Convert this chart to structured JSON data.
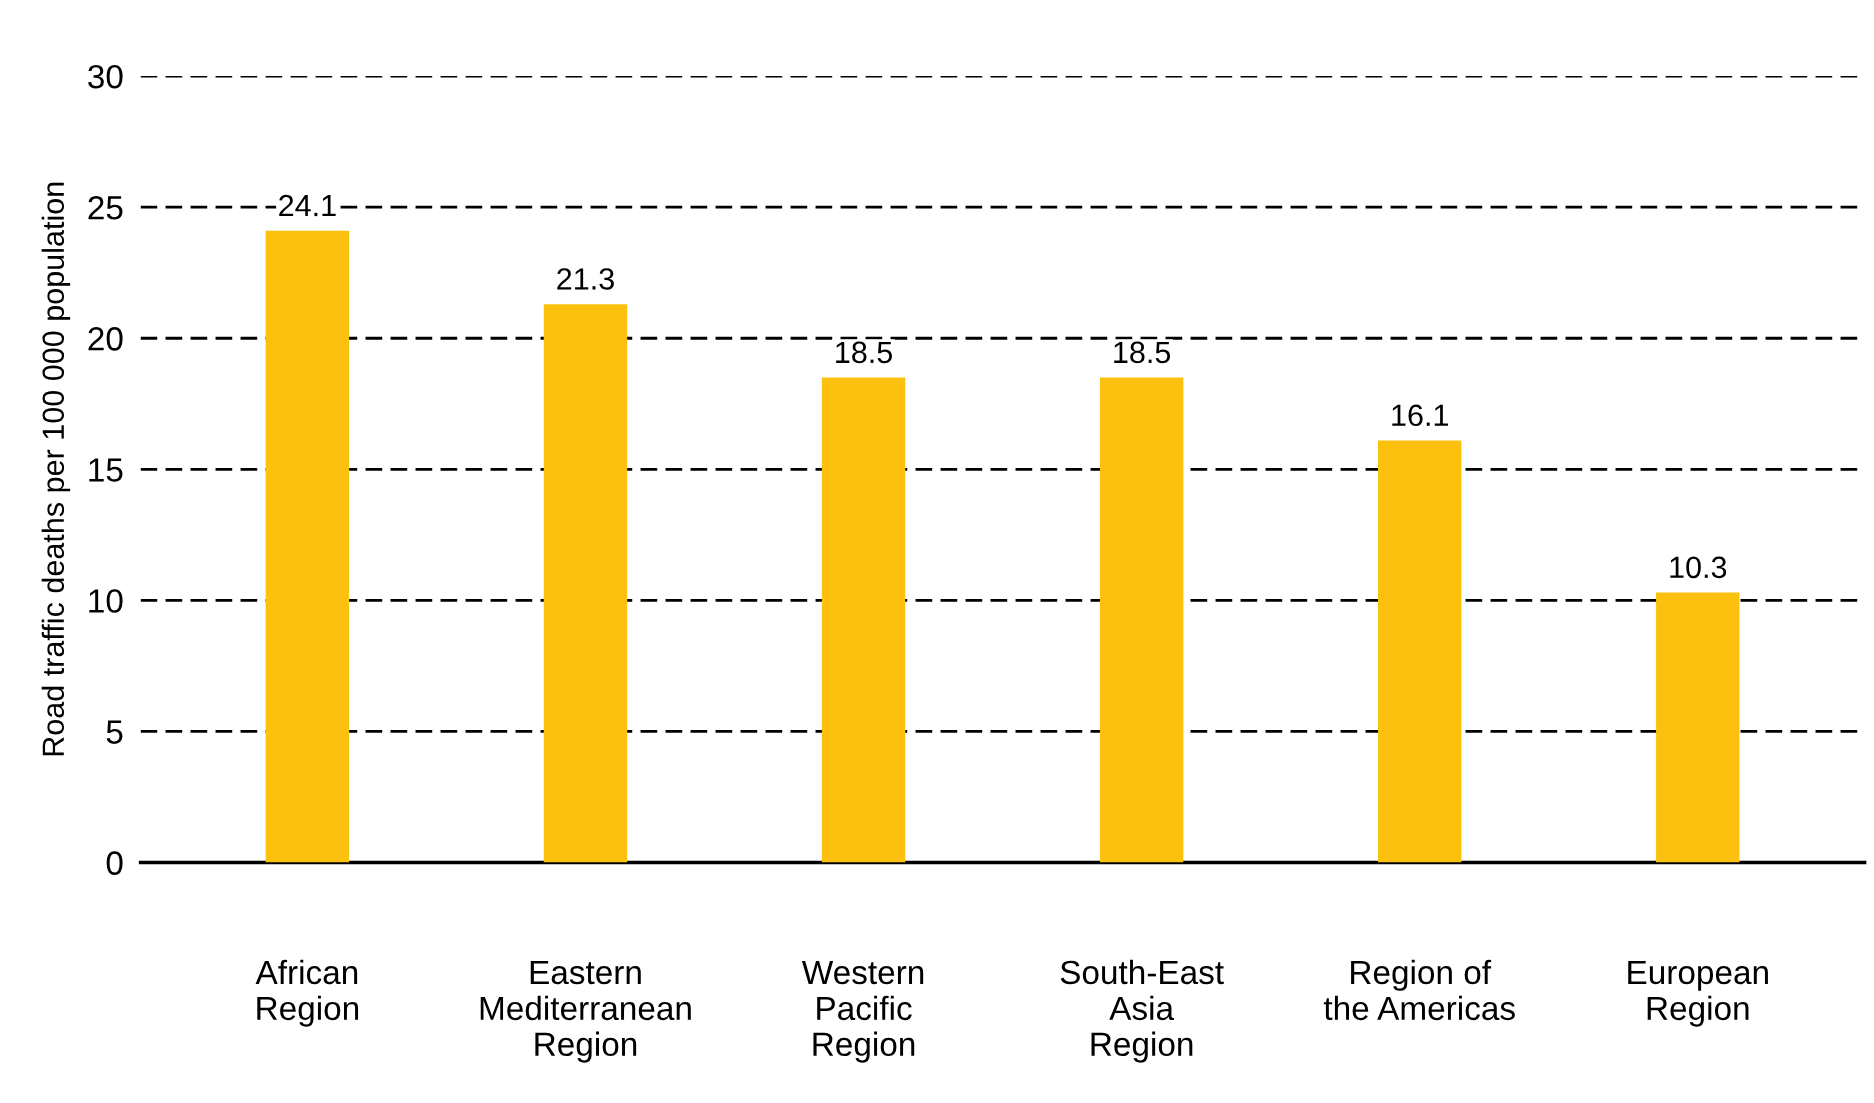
{
  "chart_data": {
    "type": "bar",
    "ylabel": "Road traffic deaths per 100 000 population",
    "categories": [
      "African\nRegion",
      "Eastern\nMediterranean\nRegion",
      "Western\nPacific\nRegion",
      "South-East\nAsia\nRegion",
      "Region of\nthe Americas",
      "European\nRegion"
    ],
    "values": [
      24.1,
      21.3,
      18.5,
      18.5,
      16.1,
      10.3
    ],
    "color": "#fcc10f",
    "ylim": [
      0,
      30
    ],
    "yticks": [
      0,
      5,
      10,
      15,
      20,
      25,
      30
    ],
    "grid": "y",
    "data_labels": true
  }
}
